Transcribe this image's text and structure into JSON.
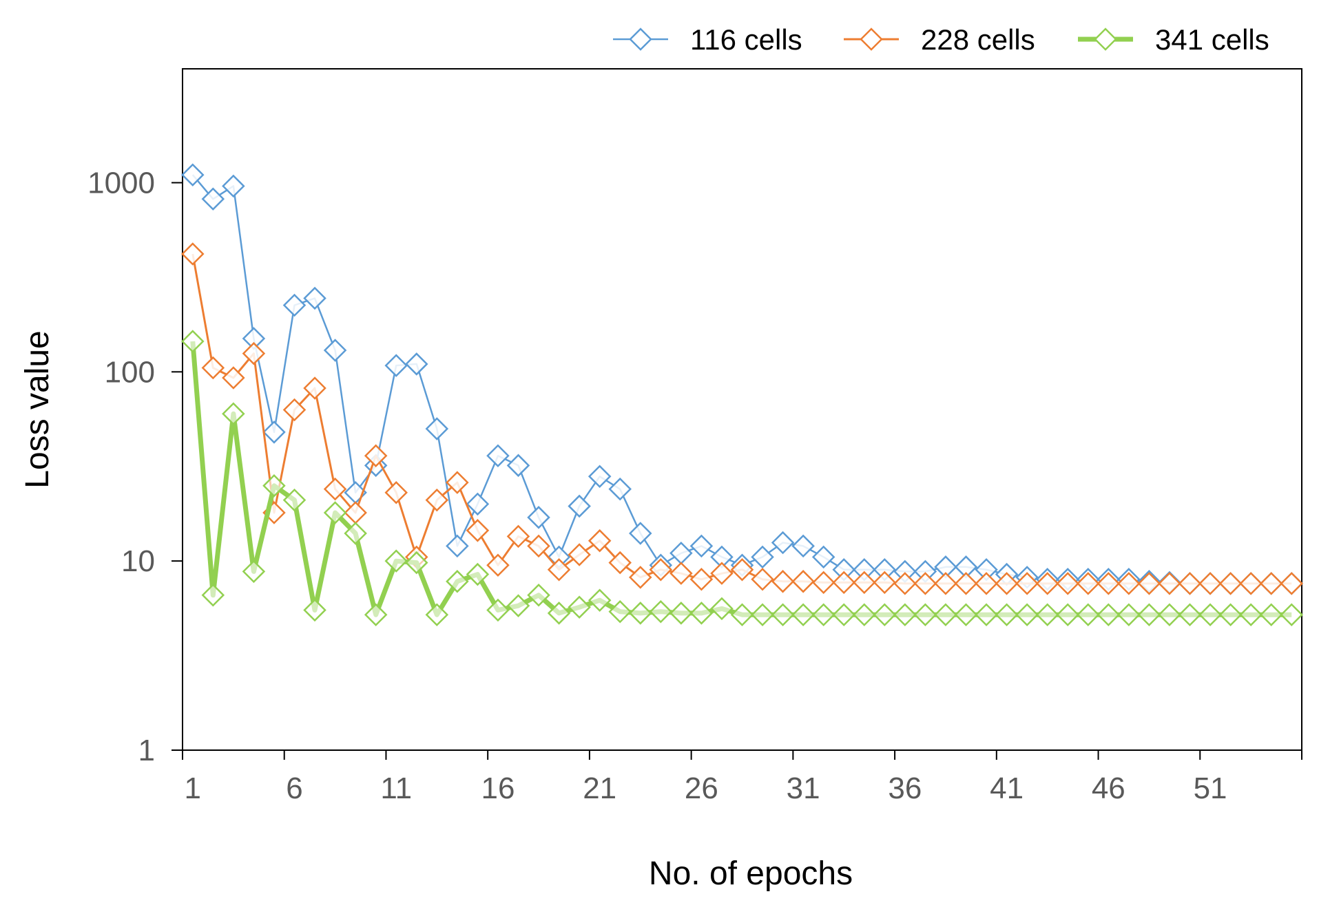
{
  "chart_data": {
    "type": "line",
    "title": "",
    "xlabel": "No. of epochs",
    "ylabel": "Loss value",
    "yscale": "log",
    "ylim": [
      1,
      4000
    ],
    "xlim": [
      0.5,
      55.5
    ],
    "x_ticks": [
      1,
      6,
      11,
      16,
      21,
      26,
      31,
      36,
      41,
      46,
      51
    ],
    "y_ticks": [
      1,
      10,
      100,
      1000
    ],
    "legend_position": "top",
    "series": [
      {
        "name": "116 cells",
        "color": "#5B9BD5",
        "marker": "diamond",
        "x": [
          1,
          2,
          3,
          4,
          5,
          6,
          7,
          8,
          9,
          10,
          11,
          12,
          13,
          14,
          15,
          16,
          17,
          18,
          19,
          20,
          21,
          22,
          23,
          24,
          25,
          26,
          27,
          28,
          29,
          30,
          31,
          32,
          33,
          34,
          35,
          36,
          37,
          38,
          39,
          40,
          41,
          42,
          43,
          44,
          45,
          46,
          47,
          48,
          49,
          50,
          51,
          52,
          53,
          54,
          55
        ],
        "values": [
          1100,
          820,
          960,
          150,
          48,
          225,
          245,
          130,
          23,
          32,
          108,
          110,
          50,
          12,
          20,
          36,
          32,
          17,
          10.5,
          19.5,
          28,
          24,
          14,
          9.5,
          11,
          12,
          10.5,
          9.5,
          10.5,
          12.5,
          12,
          10.5,
          9,
          9,
          9,
          8.8,
          8.8,
          9.3,
          9.3,
          9,
          8.5,
          8.2,
          8,
          8,
          8,
          8,
          8,
          7.8,
          7.7,
          7.6,
          7.6,
          7.6,
          7.6,
          7.6,
          7.6
        ]
      },
      {
        "name": "228 cells",
        "color": "#ED7D31",
        "marker": "diamond",
        "x": [
          1,
          2,
          3,
          4,
          5,
          6,
          7,
          8,
          9,
          10,
          11,
          12,
          13,
          14,
          15,
          16,
          17,
          18,
          19,
          20,
          21,
          22,
          23,
          24,
          25,
          26,
          27,
          28,
          29,
          30,
          31,
          32,
          33,
          34,
          35,
          36,
          37,
          38,
          39,
          40,
          41,
          42,
          43,
          44,
          45,
          46,
          47,
          48,
          49,
          50,
          51,
          52,
          53,
          54,
          55
        ],
        "values": [
          420,
          105,
          93,
          125,
          18,
          63,
          82,
          24,
          18,
          36,
          23,
          10.5,
          21,
          26,
          14.5,
          9.5,
          13.5,
          12,
          9,
          10.8,
          12.8,
          9.8,
          8.2,
          9,
          8.6,
          8,
          8.6,
          9,
          8,
          7.8,
          7.8,
          7.7,
          7.7,
          7.7,
          7.7,
          7.6,
          7.6,
          7.6,
          7.6,
          7.6,
          7.6,
          7.6,
          7.6,
          7.6,
          7.6,
          7.6,
          7.6,
          7.6,
          7.6,
          7.6,
          7.6,
          7.6,
          7.6,
          7.6,
          7.6
        ]
      },
      {
        "name": "341 cells",
        "color": "#92D050",
        "marker": "diamond",
        "x": [
          1,
          2,
          3,
          4,
          5,
          6,
          7,
          8,
          9,
          10,
          11,
          12,
          13,
          14,
          15,
          16,
          17,
          18,
          19,
          20,
          21,
          22,
          23,
          24,
          25,
          26,
          27,
          28,
          29,
          30,
          31,
          32,
          33,
          34,
          35,
          36,
          37,
          38,
          39,
          40,
          41,
          42,
          43,
          44,
          45,
          46,
          47,
          48,
          49,
          50,
          51,
          52,
          53,
          54,
          55
        ],
        "values": [
          145,
          6.6,
          60,
          8.8,
          25,
          21,
          5.5,
          18,
          14,
          5.2,
          10,
          9.8,
          5.2,
          7.8,
          8.5,
          5.5,
          5.8,
          6.6,
          5.3,
          5.7,
          6.2,
          5.4,
          5.3,
          5.4,
          5.3,
          5.3,
          5.6,
          5.2,
          5.2,
          5.2,
          5.2,
          5.2,
          5.2,
          5.2,
          5.2,
          5.2,
          5.2,
          5.2,
          5.2,
          5.2,
          5.2,
          5.2,
          5.2,
          5.2,
          5.2,
          5.2,
          5.2,
          5.2,
          5.2,
          5.2,
          5.2,
          5.2,
          5.2,
          5.2,
          5.2
        ]
      }
    ]
  }
}
